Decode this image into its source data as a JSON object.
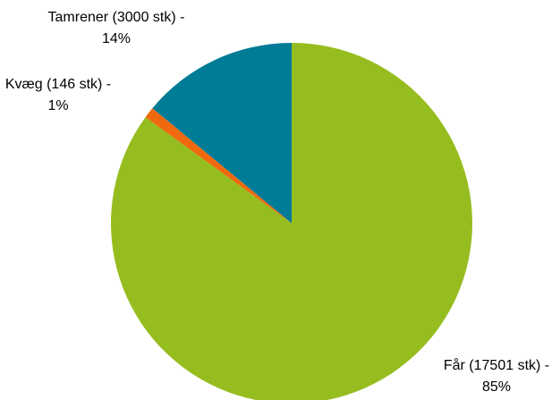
{
  "chart_data": {
    "type": "pie",
    "categories": [
      "Får (17501 stk) -",
      "Kvæg (146 stk) -",
      "Tamrener (3000 stk) -"
    ],
    "values": [
      85,
      1,
      14
    ],
    "value_labels": [
      "85%",
      "1%",
      "14%"
    ],
    "colors": [
      "#96bd1f",
      "#f0690f",
      "#007c96"
    ]
  }
}
